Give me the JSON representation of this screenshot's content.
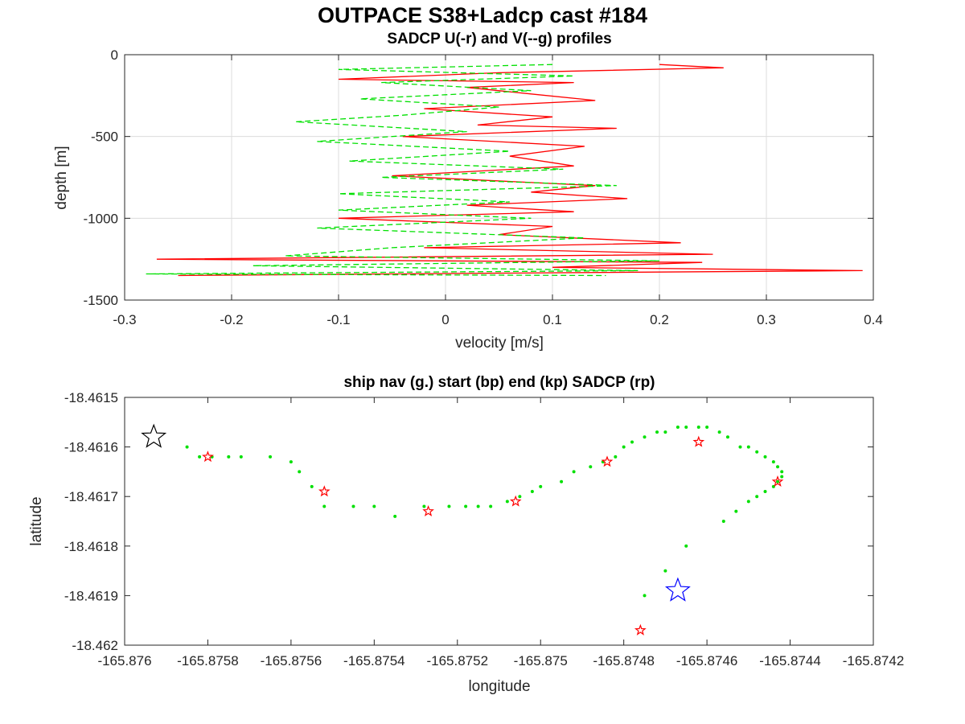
{
  "figure": {
    "title": "OUTPACE S38+Ladcp cast #184"
  },
  "chart_data": [
    {
      "type": "line",
      "title": "SADCP U(-r) and V(--g) profiles",
      "xlabel": "velocity [m/s]",
      "ylabel": "depth [m]",
      "xlim": [
        -0.3,
        0.4
      ],
      "ylim": [
        -1500,
        0
      ],
      "xticks": [
        -0.3,
        -0.2,
        -0.1,
        0,
        0.1,
        0.2,
        0.3,
        0.4
      ],
      "xtick_labels": [
        "-0.3",
        "-0.2",
        "-0.1",
        "0",
        "0.1",
        "0.2",
        "0.3",
        "0.4"
      ],
      "yticks": [
        0,
        -500,
        -1000,
        -1500
      ],
      "ytick_labels": [
        "0",
        "-500",
        "-1000",
        "-1500"
      ],
      "grid": true,
      "series": [
        {
          "color": "#ff0000",
          "style": "solid",
          "depth": [
            -60,
            -80,
            -110,
            -150,
            -170,
            -200,
            -240,
            -280,
            -330,
            -380,
            -430,
            -450,
            -500,
            -560,
            -620,
            -680,
            -740,
            -800,
            -840,
            -880,
            -920,
            -960,
            -1000,
            -1050,
            -1100,
            -1150,
            -1180,
            -1220,
            -1250,
            -1270,
            -1300,
            -1320,
            -1340,
            -1350
          ],
          "values": [
            0.2,
            0.26,
            0.05,
            -0.1,
            0.12,
            0.02,
            0.08,
            0.14,
            -0.02,
            0.1,
            0.03,
            0.16,
            -0.04,
            0.13,
            0.06,
            0.12,
            -0.05,
            0.14,
            0.08,
            0.17,
            0.02,
            0.12,
            -0.1,
            0.1,
            0.05,
            0.22,
            -0.02,
            0.25,
            -0.27,
            0.24,
            0.1,
            0.39,
            -0.05,
            -0.25
          ]
        },
        {
          "color": "#00e000",
          "style": "dashed",
          "depth": [
            -60,
            -90,
            -130,
            -170,
            -220,
            -270,
            -320,
            -370,
            -410,
            -470,
            -530,
            -590,
            -650,
            -700,
            -750,
            -800,
            -850,
            -900,
            -950,
            -1000,
            -1060,
            -1120,
            -1180,
            -1230,
            -1260,
            -1290,
            -1320,
            -1340,
            -1350
          ],
          "values": [
            0.1,
            -0.1,
            0.12,
            -0.06,
            0.08,
            -0.08,
            0.05,
            -0.04,
            -0.14,
            0.02,
            -0.12,
            0.06,
            -0.09,
            0.11,
            -0.06,
            0.16,
            -0.1,
            0.06,
            -0.1,
            0.08,
            -0.12,
            0.13,
            -0.05,
            -0.15,
            0.2,
            -0.18,
            0.18,
            -0.28,
            0.15
          ]
        }
      ]
    },
    {
      "type": "scatter",
      "title": "ship nav (g.) start (bp) end (kp) SADCP (rp)",
      "xlabel": "longitude",
      "ylabel": "latitude",
      "xlim": [
        -165.876,
        -165.8742
      ],
      "ylim": [
        -18.462,
        -18.4615
      ],
      "xticks": [
        -165.876,
        -165.8758,
        -165.8756,
        -165.8754,
        -165.8752,
        -165.875,
        -165.8748,
        -165.8746,
        -165.8744,
        -165.8742
      ],
      "xtick_labels": [
        "-165.876",
        "-165.8758",
        "-165.8756",
        "-165.8754",
        "-165.8752",
        "-165.875",
        "-165.8748",
        "-165.8746",
        "-165.8744",
        "-165.8742"
      ],
      "yticks": [
        -18.4615,
        -18.4616,
        -18.4617,
        -18.4618,
        -18.4619,
        -18.462
      ],
      "ytick_labels": [
        "-18.4615",
        "-18.4616",
        "-18.4617",
        "-18.4618",
        "-18.4619",
        "-18.462"
      ],
      "grid": false,
      "ship_nav": {
        "color": "#00e000",
        "lon": [
          -165.87585,
          -165.87582,
          -165.87579,
          -165.87575,
          -165.87572,
          -165.87565,
          -165.8756,
          -165.87558,
          -165.87555,
          -165.87552,
          -165.87545,
          -165.8754,
          -165.87535,
          -165.87528,
          -165.87522,
          -165.87518,
          -165.87515,
          -165.87512,
          -165.87508,
          -165.87505,
          -165.87502,
          -165.875,
          -165.87495,
          -165.87492,
          -165.87488,
          -165.87485,
          -165.87482,
          -165.8748,
          -165.87478,
          -165.87475,
          -165.87472,
          -165.8747,
          -165.87467,
          -165.87465,
          -165.87462,
          -165.8746,
          -165.87457,
          -165.87455,
          -165.87452,
          -165.8745,
          -165.87448,
          -165.87446,
          -165.87444,
          -165.87443,
          -165.87442,
          -165.87442,
          -165.87443,
          -165.87444,
          -165.87446,
          -165.87448,
          -165.8745,
          -165.87453,
          -165.87456,
          -165.87465,
          -165.8747,
          -165.87475
        ],
        "lat": [
          -18.4616,
          -18.46162,
          -18.46162,
          -18.46162,
          -18.46162,
          -18.46162,
          -18.46163,
          -18.46165,
          -18.46168,
          -18.46172,
          -18.46172,
          -18.46172,
          -18.46174,
          -18.46172,
          -18.46172,
          -18.46172,
          -18.46172,
          -18.46172,
          -18.46171,
          -18.4617,
          -18.46169,
          -18.46168,
          -18.46167,
          -18.46165,
          -18.46164,
          -18.46163,
          -18.46162,
          -18.4616,
          -18.46159,
          -18.46158,
          -18.46157,
          -18.46157,
          -18.46156,
          -18.46156,
          -18.46156,
          -18.46156,
          -18.46157,
          -18.46158,
          -18.4616,
          -18.4616,
          -18.46161,
          -18.46162,
          -18.46163,
          -18.46164,
          -18.46165,
          -18.46166,
          -18.46167,
          -18.46168,
          -18.46169,
          -18.4617,
          -18.46171,
          -18.46173,
          -18.46175,
          -18.4618,
          -18.46185,
          -18.4619
        ]
      },
      "start": {
        "lon": -165.87593,
        "lat": -18.46158,
        "color": "#000000"
      },
      "end": {
        "lon": -165.87467,
        "lat": -18.46189,
        "color": "#0000ff"
      },
      "sadcp": {
        "color": "#ff0000",
        "lon": [
          -165.8758,
          -165.87552,
          -165.87527,
          -165.87506,
          -165.87484,
          -165.87462,
          -165.87476,
          -165.87443
        ],
        "lat": [
          -18.46162,
          -18.46169,
          -18.46173,
          -18.46171,
          -18.46163,
          -18.46159,
          -18.46197,
          -18.46167
        ]
      }
    }
  ]
}
